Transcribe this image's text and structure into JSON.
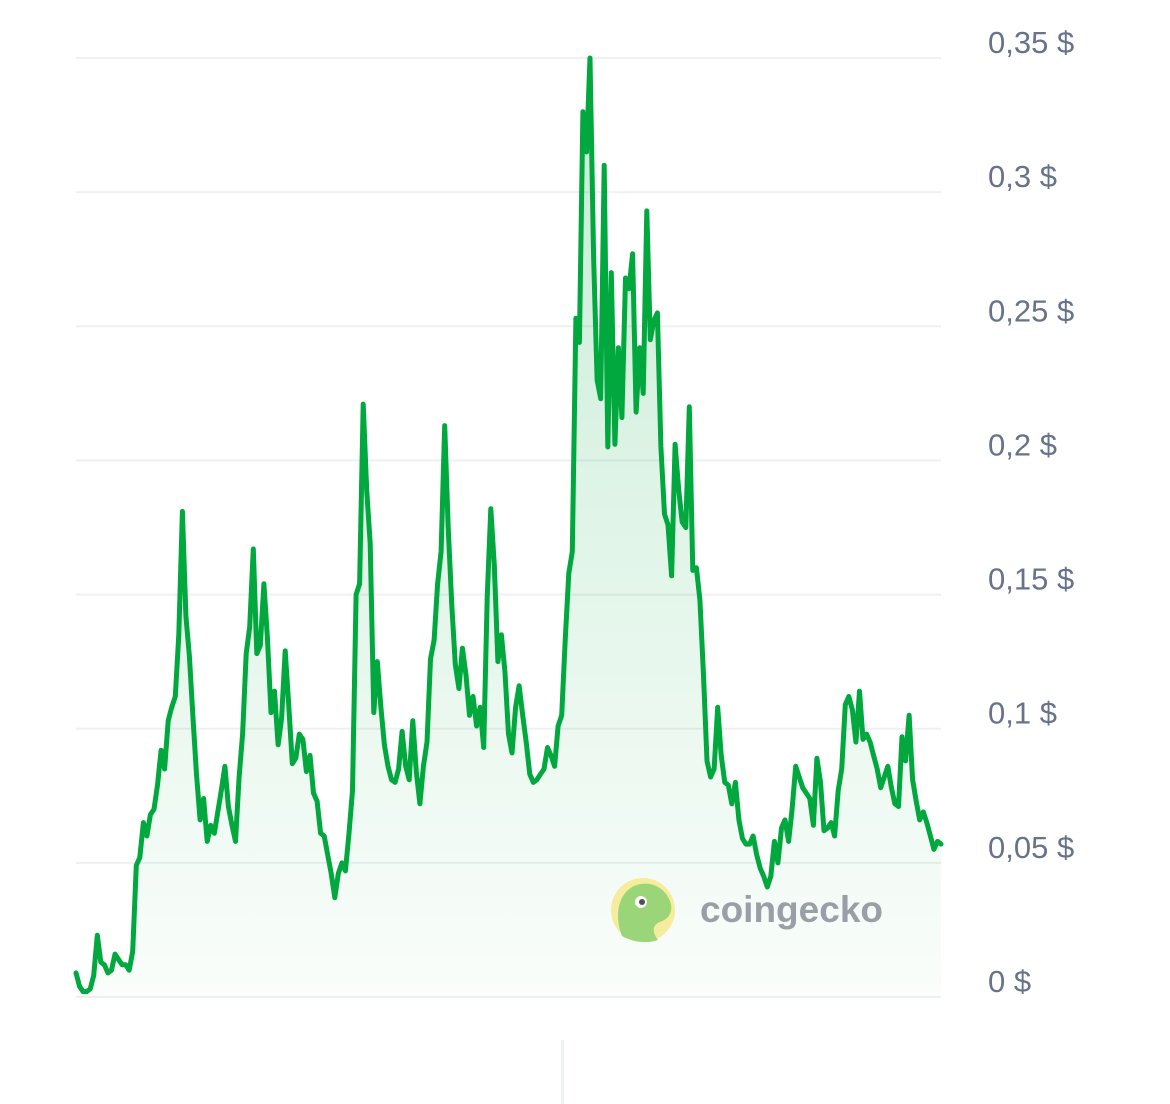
{
  "chart_data": {
    "type": "area",
    "y_tick_labels": [
      "0 $",
      "0,05 $",
      "0,1 $",
      "0,15 $",
      "0,2 $",
      "0,25 $",
      "0,3 $",
      "0,35 $"
    ],
    "y_ticks": [
      0,
      0.05,
      0.1,
      0.15,
      0.2,
      0.25,
      0.3,
      0.35
    ],
    "ylim": [
      0,
      0.35
    ],
    "y_axis_position": "right",
    "grid": "horizontal",
    "legend": "none",
    "line_color": "#00a83e",
    "fill_color": "#00a83e",
    "grid_color": "#eef0f3",
    "x_index_range": [
      0,
      240
    ],
    "values": [
      0.009,
      0.004,
      0.002,
      0.002,
      0.003,
      0.008,
      0.023,
      0.013,
      0.012,
      0.009,
      0.01,
      0.016,
      0.014,
      0.012,
      0.012,
      0.01,
      0.017,
      0.049,
      0.052,
      0.065,
      0.06,
      0.068,
      0.07,
      0.079,
      0.092,
      0.085,
      0.103,
      0.108,
      0.112,
      0.135,
      0.181,
      0.142,
      0.127,
      0.104,
      0.083,
      0.066,
      0.074,
      0.058,
      0.064,
      0.061,
      0.069,
      0.077,
      0.086,
      0.071,
      0.064,
      0.058,
      0.082,
      0.098,
      0.128,
      0.138,
      0.167,
      0.128,
      0.131,
      0.154,
      0.134,
      0.106,
      0.114,
      0.094,
      0.104,
      0.129,
      0.109,
      0.087,
      0.089,
      0.098,
      0.096,
      0.084,
      0.09,
      0.076,
      0.073,
      0.061,
      0.06,
      0.053,
      0.046,
      0.037,
      0.046,
      0.05,
      0.047,
      0.061,
      0.077,
      0.15,
      0.154,
      0.221,
      0.189,
      0.169,
      0.106,
      0.125,
      0.108,
      0.094,
      0.086,
      0.081,
      0.08,
      0.085,
      0.099,
      0.086,
      0.081,
      0.103,
      0.084,
      0.072,
      0.086,
      0.095,
      0.126,
      0.133,
      0.154,
      0.166,
      0.213,
      0.175,
      0.146,
      0.124,
      0.115,
      0.13,
      0.12,
      0.105,
      0.112,
      0.101,
      0.108,
      0.093,
      0.149,
      0.182,
      0.161,
      0.125,
      0.135,
      0.121,
      0.098,
      0.091,
      0.108,
      0.116,
      0.105,
      0.095,
      0.083,
      0.08,
      0.081,
      0.083,
      0.085,
      0.093,
      0.09,
      0.086,
      0.101,
      0.105,
      0.133,
      0.158,
      0.166,
      0.253,
      0.244,
      0.33,
      0.315,
      0.35,
      0.276,
      0.23,
      0.223,
      0.31,
      0.205,
      0.27,
      0.206,
      0.242,
      0.216,
      0.268,
      0.264,
      0.277,
      0.218,
      0.242,
      0.225,
      0.293,
      0.245,
      0.252,
      0.255,
      0.205,
      0.18,
      0.176,
      0.157,
      0.206,
      0.189,
      0.177,
      0.175,
      0.22,
      0.159,
      0.16,
      0.148,
      0.12,
      0.088,
      0.082,
      0.085,
      0.108,
      0.09,
      0.08,
      0.079,
      0.072,
      0.08,
      0.066,
      0.059,
      0.057,
      0.057,
      0.06,
      0.053,
      0.048,
      0.045,
      0.041,
      0.045,
      0.058,
      0.05,
      0.063,
      0.066,
      0.058,
      0.07,
      0.086,
      0.082,
      0.078,
      0.076,
      0.074,
      0.064,
      0.089,
      0.08,
      0.062,
      0.063,
      0.065,
      0.06,
      0.077,
      0.085,
      0.109,
      0.112,
      0.107,
      0.095,
      0.114,
      0.096,
      0.098,
      0.095,
      0.09,
      0.085,
      0.078,
      0.082,
      0.086,
      0.078,
      0.072,
      0.071,
      0.097,
      0.088,
      0.105,
      0.081,
      0.073,
      0.066,
      0.069,
      0.065,
      0.06,
      0.055,
      0.058,
      0.057
    ]
  },
  "watermark": {
    "text": "coingecko",
    "icon": "gecko-logo-icon"
  }
}
